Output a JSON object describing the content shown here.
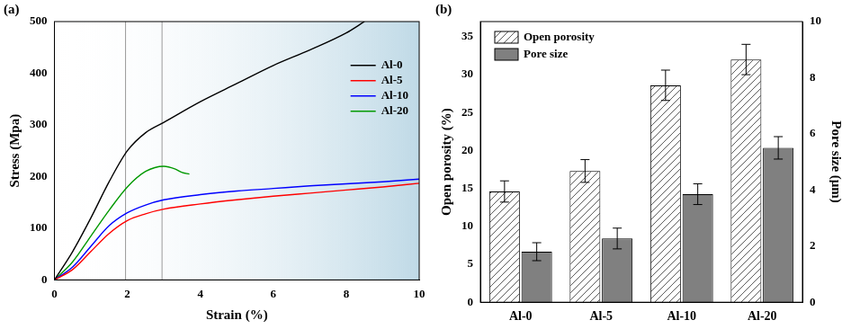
{
  "chart_data": [
    {
      "type": "line",
      "title": "(a)",
      "x_label": "Strain (%)",
      "y_label": "Stress (Mpa)",
      "xlim": [
        0,
        10
      ],
      "xticks": [
        0,
        2,
        4,
        6,
        8,
        10
      ],
      "ylim": [
        0,
        500
      ],
      "yticks": [
        0,
        100,
        200,
        300,
        400,
        500
      ],
      "grid": false,
      "legend": "upper right",
      "vlines": [
        1.95,
        2.95
      ],
      "series": [
        {
          "name": "Al-0",
          "color": "#000000",
          "x": [
            0,
            0.5,
            1,
            1.5,
            2,
            2.5,
            3,
            4,
            5,
            6,
            7,
            8,
            8.5
          ],
          "values": [
            0,
            55,
            120,
            190,
            250,
            285,
            305,
            345,
            380,
            415,
            445,
            478,
            500
          ]
        },
        {
          "name": "Al-5",
          "color": "#ff0000",
          "x": [
            0,
            0.5,
            1,
            1.5,
            2,
            2.5,
            3,
            4,
            5,
            6,
            7,
            8,
            9,
            10
          ],
          "values": [
            0,
            20,
            55,
            90,
            115,
            128,
            137,
            147,
            155,
            162,
            168,
            174,
            180,
            187
          ]
        },
        {
          "name": "Al-10",
          "color": "#0000ff",
          "x": [
            0,
            0.5,
            1,
            1.5,
            2,
            2.5,
            3,
            4,
            5,
            6,
            7,
            8,
            9,
            10
          ],
          "values": [
            0,
            25,
            65,
            105,
            130,
            145,
            155,
            165,
            172,
            177,
            182,
            186,
            190,
            195
          ]
        },
        {
          "name": "Al-20",
          "color": "#009900",
          "x": [
            0,
            0.5,
            1,
            1.5,
            2,
            2.5,
            3,
            3.3,
            3.5,
            3.7
          ],
          "values": [
            0,
            35,
            85,
            135,
            180,
            210,
            220,
            215,
            208,
            205
          ]
        }
      ]
    },
    {
      "type": "bar",
      "title": "(b)",
      "categories": [
        "Al-0",
        "Al-5",
        "Al-10",
        "Al-20"
      ],
      "y_label": "Open porosity (%)",
      "y2_label": "Pore size (μm)",
      "ylim": [
        0,
        37
      ],
      "yticks": [
        0,
        5,
        10,
        15,
        20,
        25,
        30,
        35
      ],
      "y2lim": [
        0,
        10
      ],
      "y2ticks": [
        0,
        2,
        4,
        6,
        8,
        10
      ],
      "grid": false,
      "legend": "upper left",
      "series": [
        {
          "name": "Open porosity",
          "color": "#ffffff",
          "values": [
            14.6,
            17.3,
            28.6,
            32.0
          ],
          "errors": [
            1.4,
            1.5,
            2.0,
            2.0
          ]
        },
        {
          "name": "Pore size",
          "color": "#808080",
          "axis": "y2",
          "values": [
            1.8,
            2.27,
            3.85,
            5.5
          ],
          "errors": [
            0.32,
            0.37,
            0.37,
            0.4
          ]
        }
      ]
    }
  ]
}
